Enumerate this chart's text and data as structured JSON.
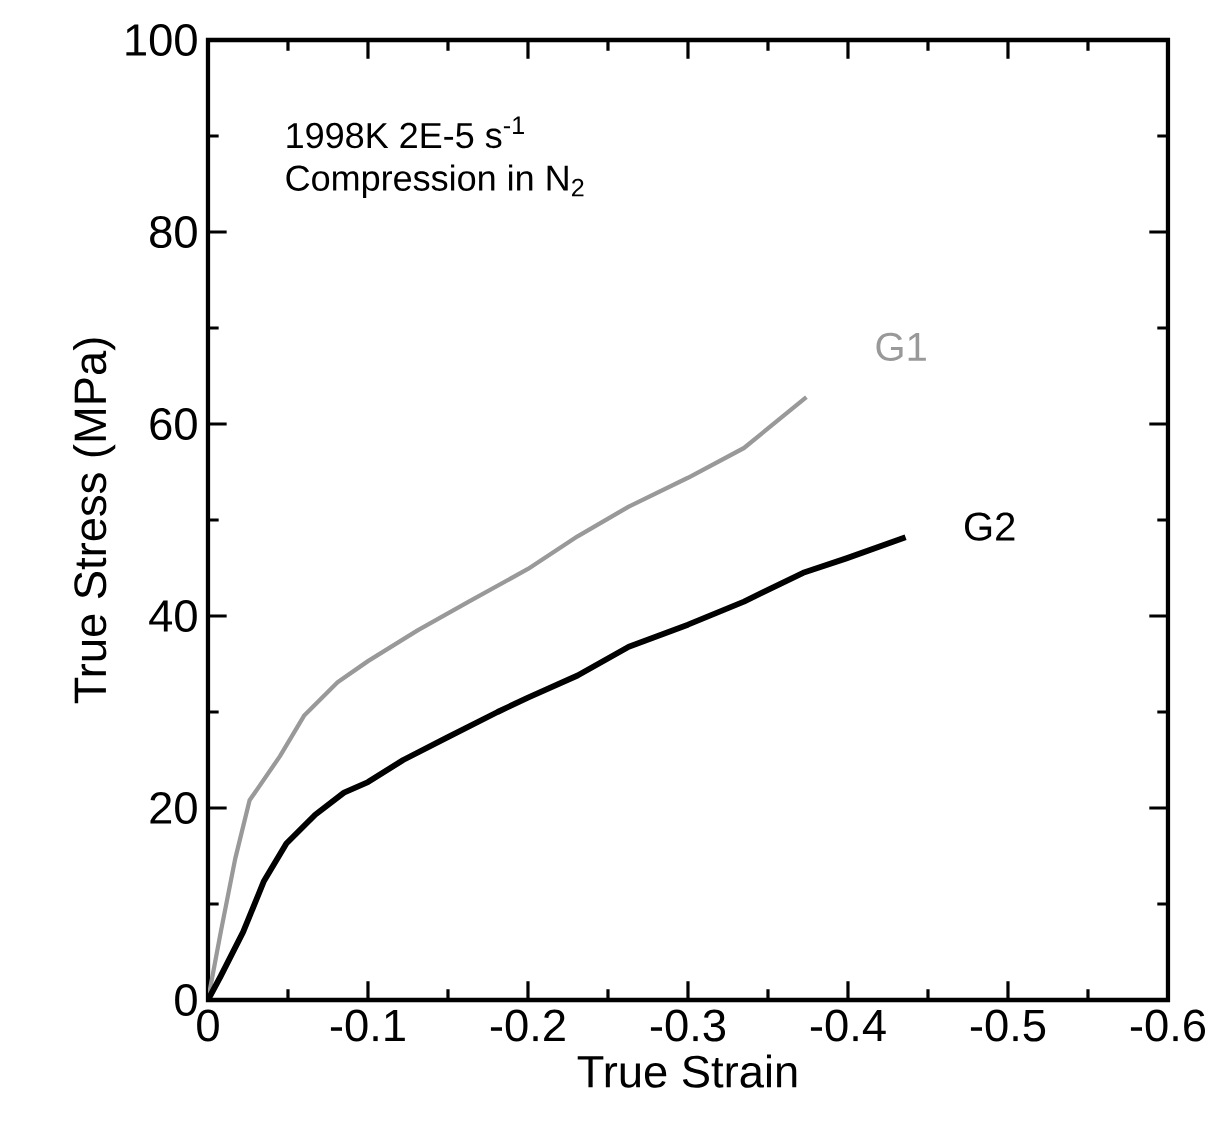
{
  "chart_data": {
    "type": "line",
    "xlabel": "True Strain",
    "ylabel": "True Stress (MPa)",
    "annotations": [
      "1998K 2E-5 s$^{-1}$",
      "Compression in N$_{2}$"
    ],
    "xlim": [
      0,
      -0.6
    ],
    "ylim": [
      0,
      100
    ],
    "xticks": [
      0,
      -0.1,
      -0.2,
      -0.3,
      -0.4,
      -0.5,
      -0.6
    ],
    "yticks": [
      0,
      20,
      40,
      60,
      80,
      100
    ],
    "marker": "none",
    "series": [
      {
        "name": "G1",
        "color": "#999999",
        "x": [
          0,
          -0.008,
          -0.017,
          -0.026,
          -0.045,
          -0.06,
          -0.081,
          -0.1,
          -0.131,
          -0.163,
          -0.2,
          -0.231,
          -0.263,
          -0.3,
          -0.335,
          -0.374
        ],
        "values": [
          0,
          7.1,
          14.7,
          20.8,
          25.4,
          29.6,
          33.1,
          35.3,
          38.5,
          41.5,
          44.9,
          48.3,
          51.4,
          54.4,
          57.5,
          62.8
        ]
      },
      {
        "name": "G2",
        "color": "#000000",
        "x": [
          0,
          -0.008,
          -0.022,
          -0.035,
          -0.049,
          -0.067,
          -0.085,
          -0.1,
          -0.122,
          -0.149,
          -0.181,
          -0.2,
          -0.231,
          -0.263,
          -0.3,
          -0.335,
          -0.372,
          -0.399,
          -0.436
        ],
        "values": [
          0,
          2.5,
          7.1,
          12.4,
          16.3,
          19.3,
          21.6,
          22.7,
          25.0,
          27.3,
          30.0,
          31.5,
          33.8,
          36.8,
          39.1,
          41.5,
          44.5,
          46.0,
          48.2
        ]
      }
    ]
  }
}
